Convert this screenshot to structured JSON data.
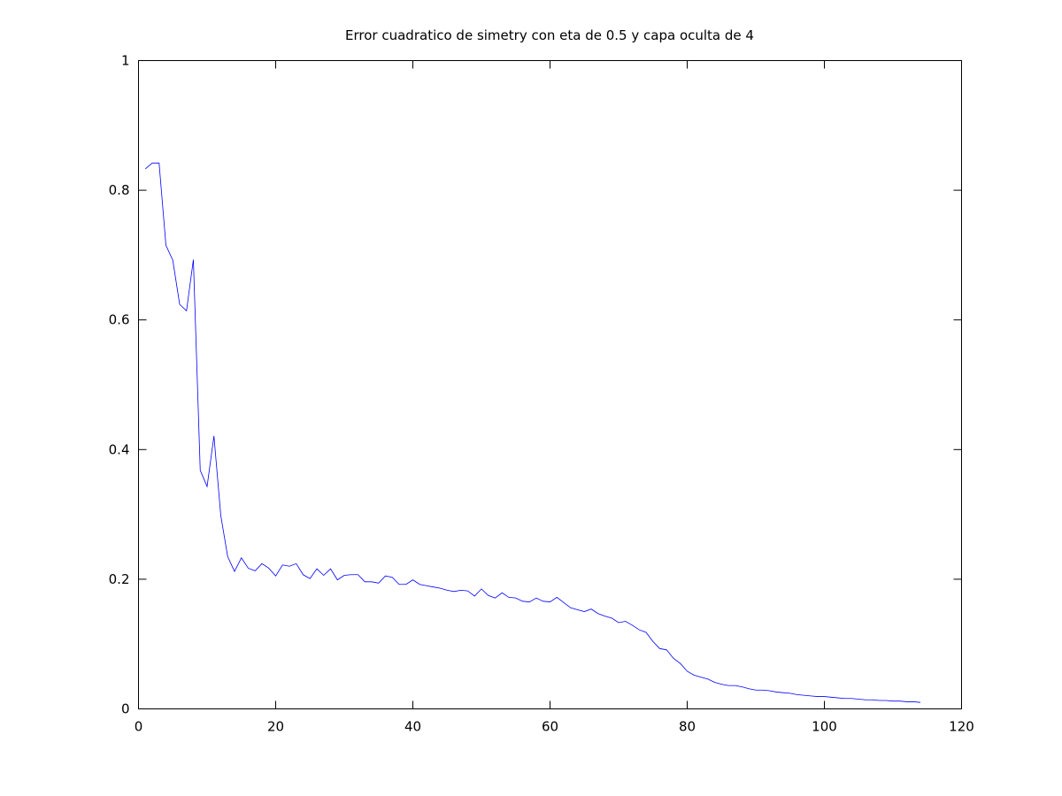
{
  "chart_data": {
    "type": "line",
    "title": "Error cuadratico de simetry con eta de 0.5 y capa oculta de 4",
    "xlabel": "",
    "ylabel": "",
    "xlim": [
      0,
      120
    ],
    "ylim": [
      0,
      1
    ],
    "x_ticks": [
      0,
      20,
      40,
      60,
      80,
      100,
      120
    ],
    "y_ticks": [
      0,
      0.2,
      0.4,
      0.6,
      0.8,
      1
    ],
    "x_tick_labels": [
      "0",
      "20",
      "40",
      "60",
      "80",
      "100",
      "120"
    ],
    "y_tick_labels": [
      "0",
      "0.2",
      "0.4",
      "0.6",
      "0.8",
      "1"
    ],
    "grid": false,
    "legend": "none",
    "series": [
      {
        "color": "#0000ff",
        "x": [
          1,
          2,
          3,
          4,
          5,
          6,
          7,
          8,
          9,
          10,
          11,
          12,
          13,
          14,
          15,
          16,
          17,
          18,
          19,
          20,
          21,
          22,
          23,
          24,
          25,
          26,
          27,
          28,
          29,
          30,
          31,
          32,
          33,
          34,
          35,
          36,
          37,
          38,
          39,
          40,
          41,
          42,
          43,
          44,
          45,
          46,
          47,
          48,
          49,
          50,
          51,
          52,
          53,
          54,
          55,
          56,
          57,
          58,
          59,
          60,
          61,
          62,
          63,
          64,
          65,
          66,
          67,
          68,
          69,
          70,
          71,
          72,
          73,
          74,
          75,
          76,
          77,
          78,
          79,
          80,
          81,
          82,
          83,
          84,
          85,
          86,
          87,
          88,
          89,
          90,
          91,
          92,
          93,
          94,
          95,
          96,
          97,
          98,
          99,
          100,
          101,
          102,
          103,
          104,
          105,
          106,
          107,
          108,
          109,
          110,
          111,
          112,
          113,
          114
        ],
        "y": [
          0.833,
          0.842,
          0.842,
          0.715,
          0.692,
          0.624,
          0.614,
          0.693,
          0.368,
          0.343,
          0.421,
          0.298,
          0.235,
          0.212,
          0.233,
          0.217,
          0.213,
          0.224,
          0.217,
          0.205,
          0.222,
          0.22,
          0.224,
          0.207,
          0.201,
          0.216,
          0.206,
          0.216,
          0.199,
          0.206,
          0.207,
          0.207,
          0.196,
          0.196,
          0.194,
          0.205,
          0.203,
          0.192,
          0.192,
          0.199,
          0.192,
          0.19,
          0.188,
          0.186,
          0.183,
          0.181,
          0.183,
          0.182,
          0.174,
          0.185,
          0.175,
          0.171,
          0.179,
          0.172,
          0.171,
          0.166,
          0.165,
          0.171,
          0.166,
          0.165,
          0.172,
          0.164,
          0.156,
          0.153,
          0.15,
          0.154,
          0.147,
          0.143,
          0.14,
          0.133,
          0.135,
          0.129,
          0.122,
          0.118,
          0.104,
          0.093,
          0.091,
          0.078,
          0.07,
          0.058,
          0.052,
          0.049,
          0.046,
          0.041,
          0.038,
          0.036,
          0.036,
          0.034,
          0.031,
          0.029,
          0.029,
          0.028,
          0.026,
          0.025,
          0.024,
          0.022,
          0.021,
          0.02,
          0.019,
          0.019,
          0.018,
          0.017,
          0.016,
          0.016,
          0.015,
          0.014,
          0.014,
          0.013,
          0.013,
          0.012,
          0.012,
          0.011,
          0.011,
          0.01
        ]
      }
    ]
  }
}
